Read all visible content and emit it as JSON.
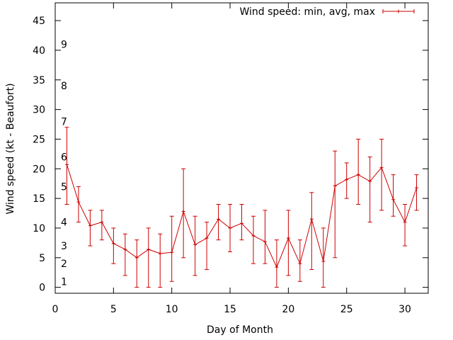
{
  "chart_data": {
    "type": "line",
    "xlabel": "Day of Month",
    "ylabel": "Wind speed (kt - Beaufort)",
    "xlim": [
      0,
      32
    ],
    "ylim": [
      -1,
      48
    ],
    "x_ticks": [
      0,
      5,
      10,
      15,
      20,
      25,
      30
    ],
    "y_ticks": [
      0,
      5,
      10,
      15,
      20,
      25,
      30,
      35,
      40,
      45
    ],
    "grid": false,
    "legend": "top-right",
    "beaufort_labels": [
      {
        "label": "1",
        "y": 1
      },
      {
        "label": "2",
        "y": 4
      },
      {
        "label": "3",
        "y": 7
      },
      {
        "label": "4",
        "y": 11
      },
      {
        "label": "5",
        "y": 17
      },
      {
        "label": "6",
        "y": 22
      },
      {
        "label": "7",
        "y": 28
      },
      {
        "label": "8",
        "y": 34
      },
      {
        "label": "9",
        "y": 41
      }
    ],
    "series": [
      {
        "name": "Wind speed: min, avg, max",
        "color": "#cc0000",
        "x": [
          1,
          2,
          3,
          4,
          5,
          6,
          7,
          8,
          9,
          10,
          11,
          12,
          13,
          14,
          15,
          16,
          17,
          18,
          19,
          20,
          21,
          22,
          23,
          24,
          25,
          26,
          27,
          28,
          29,
          30,
          31
        ],
        "avg": [
          20.7,
          14.4,
          10.4,
          11.0,
          7.4,
          6.4,
          5.0,
          6.4,
          5.7,
          5.9,
          12.8,
          7.2,
          8.3,
          11.5,
          10.0,
          10.8,
          8.7,
          7.7,
          3.4,
          8.3,
          4.0,
          11.5,
          4.4,
          17.1,
          18.2,
          19.0,
          17.9,
          20.2,
          14.8,
          11.0,
          16.8
        ],
        "min": [
          14,
          11,
          7,
          8,
          4,
          2,
          0,
          0,
          0,
          1,
          5,
          2,
          3,
          8,
          6,
          8,
          4,
          4,
          0,
          2,
          1,
          3,
          0,
          5,
          15,
          14,
          11,
          13,
          12,
          7,
          13
        ],
        "max": [
          27,
          17,
          13,
          13,
          10,
          9,
          8,
          10,
          9,
          12,
          20,
          12,
          11,
          14,
          14,
          14,
          12,
          13,
          8,
          13,
          8,
          16,
          10,
          23,
          21,
          25,
          22,
          25,
          19,
          14,
          19
        ]
      }
    ]
  }
}
